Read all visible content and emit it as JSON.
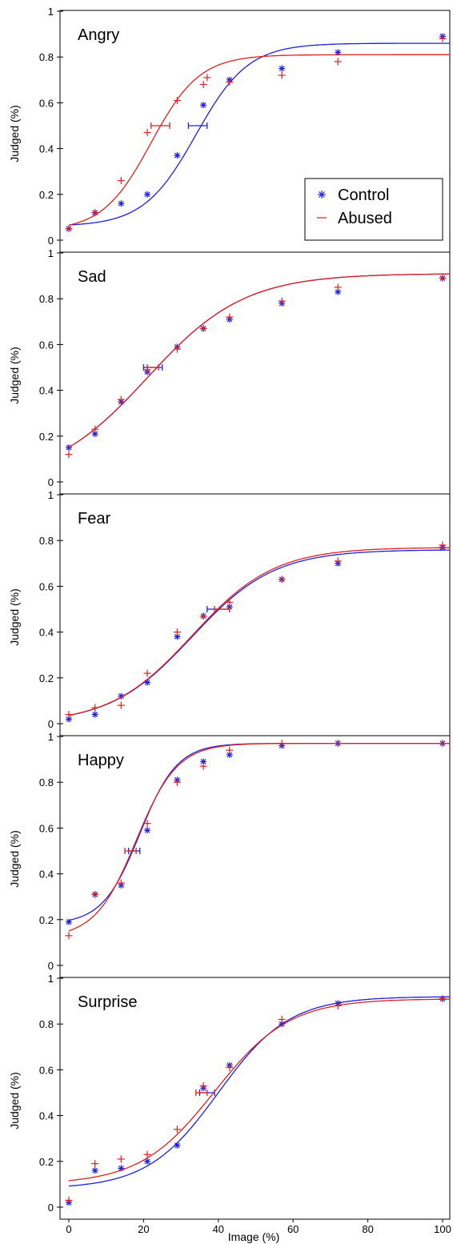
{
  "chart_data": [
    {
      "type": "scatter",
      "title": "Angry",
      "ylabel": "Judged (%)",
      "xlabel": "",
      "xlim": [
        -2,
        102
      ],
      "ylim": [
        -0.02,
        1.02
      ],
      "yticks": [
        0,
        0.2,
        0.4,
        0.6,
        0.8,
        1
      ],
      "legend": {
        "position": "bottom-right",
        "entries": [
          "Control",
          "Abused"
        ]
      },
      "series": [
        {
          "name": "Control",
          "color": "#1f1fe0",
          "marker": "star",
          "points": [
            [
              0,
              0.05
            ],
            [
              7,
              0.12
            ],
            [
              14,
              0.16
            ],
            [
              21,
              0.2
            ],
            [
              29,
              0.37
            ],
            [
              36,
              0.59
            ],
            [
              43,
              0.7
            ],
            [
              57,
              0.75
            ],
            [
              72,
              0.82
            ],
            [
              100,
              0.89
            ]
          ],
          "fit": {
            "lower": 0.06,
            "upper": 0.86,
            "x50": 34,
            "width": 7
          },
          "xerr": [
            {
              "y": 0.5,
              "x_from": 32,
              "x_to": 37
            }
          ]
        },
        {
          "name": "Abused",
          "color": "#e01f1f",
          "marker": "plus",
          "points": [
            [
              0,
              0.05
            ],
            [
              7,
              0.12
            ],
            [
              14,
              0.26
            ],
            [
              21,
              0.47
            ],
            [
              29,
              0.61
            ],
            [
              36,
              0.68
            ],
            [
              37,
              0.71
            ],
            [
              43,
              0.69
            ],
            [
              57,
              0.72
            ],
            [
              72,
              0.78
            ],
            [
              100,
              0.88
            ]
          ],
          "fit": {
            "lower": 0.04,
            "upper": 0.81,
            "x50": 22,
            "width": 6.5
          },
          "xerr": [
            {
              "y": 0.5,
              "x_from": 22,
              "x_to": 27
            }
          ]
        }
      ]
    },
    {
      "type": "scatter",
      "title": "Sad",
      "ylabel": "Judged (%)",
      "xlabel": "",
      "xlim": [
        -2,
        102
      ],
      "ylim": [
        -0.02,
        1.02
      ],
      "yticks": [
        0,
        0.2,
        0.4,
        0.6,
        0.8,
        1
      ],
      "series": [
        {
          "name": "Control",
          "color": "#1f1fe0",
          "marker": "star",
          "points": [
            [
              0,
              0.15
            ],
            [
              7,
              0.21
            ],
            [
              14,
              0.35
            ],
            [
              21,
              0.48
            ],
            [
              29,
              0.59
            ],
            [
              36,
              0.67
            ],
            [
              43,
              0.71
            ],
            [
              57,
              0.78
            ],
            [
              72,
              0.83
            ],
            [
              100,
              0.89
            ]
          ],
          "fit": {
            "lower": 0.0,
            "upper": 0.91,
            "x50": 21,
            "width": 13
          },
          "xerr": [
            {
              "y": 0.5,
              "x_from": 20,
              "x_to": 25
            }
          ]
        },
        {
          "name": "Abused",
          "color": "#e01f1f",
          "marker": "plus",
          "points": [
            [
              0,
              0.12
            ],
            [
              7,
              0.23
            ],
            [
              14,
              0.36
            ],
            [
              21,
              0.49
            ],
            [
              29,
              0.58
            ],
            [
              36,
              0.67
            ],
            [
              43,
              0.72
            ],
            [
              57,
              0.79
            ],
            [
              72,
              0.85
            ],
            [
              100,
              0.89
            ]
          ],
          "fit": {
            "lower": 0.0,
            "upper": 0.91,
            "x50": 21,
            "width": 13
          },
          "xerr": [
            {
              "y": 0.5,
              "x_from": 21,
              "x_to": 24
            }
          ]
        }
      ]
    },
    {
      "type": "scatter",
      "title": "Fear",
      "ylabel": "Judged (%)",
      "xlabel": "",
      "xlim": [
        -2,
        102
      ],
      "ylim": [
        -0.02,
        1.02
      ],
      "yticks": [
        0,
        0.2,
        0.4,
        0.6,
        0.8,
        1
      ],
      "series": [
        {
          "name": "Control",
          "color": "#1f1fe0",
          "marker": "star",
          "points": [
            [
              0,
              0.02
            ],
            [
              7,
              0.04
            ],
            [
              14,
              0.12
            ],
            [
              21,
              0.18
            ],
            [
              29,
              0.38
            ],
            [
              36,
              0.47
            ],
            [
              43,
              0.51
            ],
            [
              57,
              0.63
            ],
            [
              72,
              0.7
            ],
            [
              100,
              0.77
            ]
          ],
          "fit": {
            "lower": 0.0,
            "upper": 0.76,
            "x50": 33,
            "width": 11
          },
          "xerr": [
            {
              "y": 0.5,
              "x_from": 37,
              "x_to": 43
            }
          ]
        },
        {
          "name": "Abused",
          "color": "#e01f1f",
          "marker": "plus",
          "points": [
            [
              0,
              0.04
            ],
            [
              7,
              0.07
            ],
            [
              14,
              0.08
            ],
            [
              21,
              0.22
            ],
            [
              29,
              0.4
            ],
            [
              36,
              0.47
            ],
            [
              43,
              0.53
            ],
            [
              57,
              0.63
            ],
            [
              72,
              0.71
            ],
            [
              100,
              0.78
            ]
          ],
          "fit": {
            "lower": 0.0,
            "upper": 0.77,
            "x50": 33,
            "width": 11
          },
          "xerr": [
            {
              "y": 0.5,
              "x_from": 39,
              "x_to": 43
            }
          ]
        }
      ]
    },
    {
      "type": "scatter",
      "title": "Happy",
      "ylabel": "Judged (%)",
      "xlabel": "",
      "xlim": [
        -2,
        102
      ],
      "ylim": [
        -0.02,
        1.02
      ],
      "yticks": [
        0,
        0.2,
        0.4,
        0.6,
        0.8,
        1
      ],
      "series": [
        {
          "name": "Control",
          "color": "#1f1fe0",
          "marker": "star",
          "points": [
            [
              0,
              0.19
            ],
            [
              7,
              0.31
            ],
            [
              14,
              0.35
            ],
            [
              21,
              0.59
            ],
            [
              29,
              0.81
            ],
            [
              36,
              0.89
            ],
            [
              43,
              0.92
            ],
            [
              57,
              0.96
            ],
            [
              72,
              0.97
            ],
            [
              100,
              0.97
            ]
          ],
          "fit": {
            "lower": 0.18,
            "upper": 0.97,
            "x50": 19,
            "width": 5
          },
          "xerr": [
            {
              "y": 0.5,
              "x_from": 16,
              "x_to": 19
            }
          ]
        },
        {
          "name": "Abused",
          "color": "#e01f1f",
          "marker": "plus",
          "points": [
            [
              0,
              0.13
            ],
            [
              7,
              0.31
            ],
            [
              14,
              0.36
            ],
            [
              21,
              0.62
            ],
            [
              29,
              0.8
            ],
            [
              36,
              0.87
            ],
            [
              43,
              0.94
            ],
            [
              57,
              0.97
            ],
            [
              72,
              0.97
            ],
            [
              100,
              0.97
            ]
          ],
          "fit": {
            "lower": 0.12,
            "upper": 0.97,
            "x50": 18,
            "width": 5.5
          },
          "xerr": [
            {
              "y": 0.5,
              "x_from": 15,
              "x_to": 18
            }
          ]
        }
      ]
    },
    {
      "type": "scatter",
      "title": "Surprise",
      "ylabel": "Judged (%)",
      "xlabel": "Image (%)",
      "xlim": [
        -2,
        102
      ],
      "ylim": [
        -0.02,
        1.02
      ],
      "xticks": [
        0,
        20,
        40,
        60,
        80,
        100
      ],
      "yticks": [
        0,
        0.2,
        0.4,
        0.6,
        0.8,
        1
      ],
      "series": [
        {
          "name": "Control",
          "color": "#1f1fe0",
          "marker": "star",
          "points": [
            [
              0,
              0.02
            ],
            [
              7,
              0.16
            ],
            [
              14,
              0.17
            ],
            [
              21,
              0.2
            ],
            [
              29,
              0.27
            ],
            [
              36,
              0.52
            ],
            [
              43,
              0.62
            ],
            [
              57,
              0.8
            ],
            [
              72,
              0.89
            ],
            [
              100,
              0.91
            ]
          ],
          "fit": {
            "lower": 0.08,
            "upper": 0.92,
            "x50": 40,
            "width": 9.5
          },
          "xerr": [
            {
              "y": 0.5,
              "x_from": 35,
              "x_to": 39
            }
          ]
        },
        {
          "name": "Abused",
          "color": "#e01f1f",
          "marker": "plus",
          "points": [
            [
              0,
              0.03
            ],
            [
              7,
              0.19
            ],
            [
              14,
              0.21
            ],
            [
              21,
              0.23
            ],
            [
              29,
              0.34
            ],
            [
              36,
              0.53
            ],
            [
              43,
              0.61
            ],
            [
              57,
              0.82
            ],
            [
              72,
              0.88
            ],
            [
              100,
              0.91
            ]
          ],
          "fit": {
            "lower": 0.1,
            "upper": 0.91,
            "x50": 39,
            "width": 10
          },
          "xerr": [
            {
              "y": 0.5,
              "x_from": 34,
              "x_to": 37
            }
          ]
        }
      ]
    }
  ]
}
